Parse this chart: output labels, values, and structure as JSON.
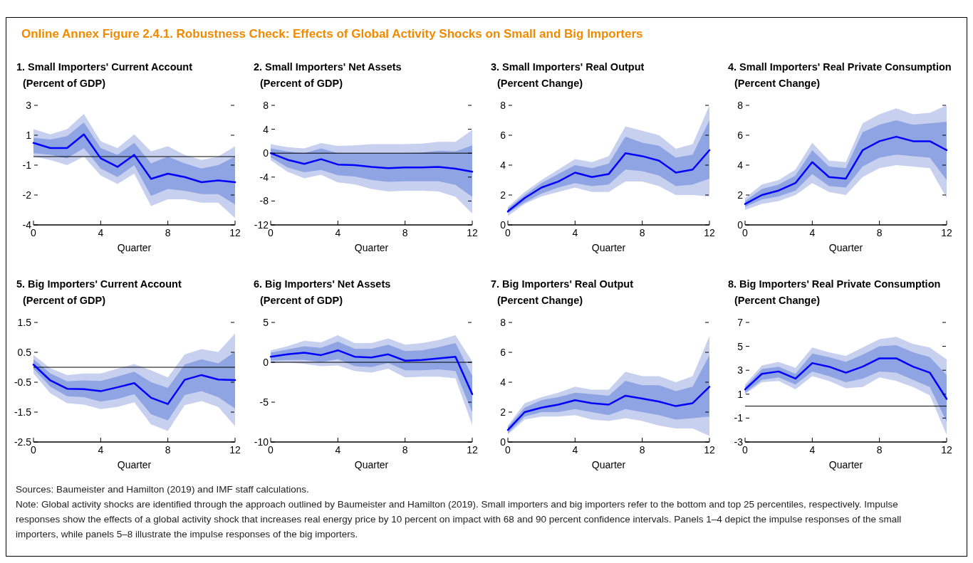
{
  "chart_data": [
    {
      "type": "other",
      "title": "Online Annex Figure 2.4.1. Robustness Check: Effects of Global Activity Shocks on Small and Big Importers",
      "color": "#f28a00",
      "annotations": [
        "Sources: Baumeister and Hamilton (2019) and IMF staff calculations.",
        "Note: Global activity shocks are identified through the approach outlined by Baumeister and Hamilton (2019). Small importers and big importers refer to the bottom and top 25 percentiles, respectively. Impulse responses show the effects of a global activity shock that increases real energy price by 10 percent on impact with 68 and 90 percent confidence intervals. Panels 1–4 depict the impulse responses of the small importers, while panels 5–8 illustrate the impulse responses of the big importers."
      ]
    },
    {
      "type": "line",
      "title": "1. Small Importers' Current Account",
      "subtitle": "(Percent of GDP)",
      "xlabel": "Quarter",
      "x": [
        0,
        1,
        2,
        3,
        4,
        5,
        6,
        7,
        8,
        9,
        10,
        11,
        12
      ],
      "xlim": [
        0,
        12
      ],
      "xticks": [
        0,
        4,
        8,
        12
      ],
      "ylim": [
        -4,
        3
      ],
      "yticks": [
        {
          "value": 3,
          "label": "3"
        },
        {
          "value": 1.25,
          "label": "1"
        },
        {
          "value": -0.5,
          "label": "-1"
        },
        {
          "value": -2.25,
          "label": "-2"
        },
        {
          "value": -4,
          "label": "-4"
        }
      ],
      "ref_lines": [
        {
          "axis": "y",
          "value": 0,
          "color": "#000000"
        }
      ],
      "series": [
        {
          "type": "line",
          "color": "#c8d0ef",
          "values": [
            null,
            null,
            null,
            null,
            null,
            null,
            null,
            null,
            null,
            null,
            null,
            null,
            null
          ],
          "lower": [
            0.0,
            -0.2,
            -0.5,
            0.0,
            -1.1,
            -1.6,
            -1.0,
            -2.9,
            -2.5,
            -2.5,
            -2.7,
            -2.7,
            -3.6
          ],
          "upper": [
            1.6,
            1.3,
            1.6,
            2.5,
            0.9,
            0.5,
            1.3,
            0.3,
            0.6,
            0.1,
            -0.2,
            0.0,
            0.6
          ]
        },
        {
          "type": "line",
          "color": "#8fa4e2",
          "values": [
            null,
            null,
            null,
            null,
            null,
            null,
            null,
            null,
            null,
            null,
            null,
            null,
            null
          ],
          "lower": [
            0.2,
            0.1,
            -0.1,
            0.5,
            -0.7,
            -1.2,
            -0.5,
            -2.3,
            -1.9,
            -2.0,
            -2.2,
            -2.2,
            -2.8
          ],
          "upper": [
            1.1,
            1.0,
            1.2,
            2.0,
            0.5,
            0.1,
            0.8,
            -0.4,
            0.0,
            -0.4,
            -0.7,
            -0.5,
            0.0
          ]
        },
        {
          "type": "line",
          "color": "#0000ff",
          "values": [
            0.8,
            0.5,
            0.5,
            1.3,
            -0.1,
            -0.6,
            0.1,
            -1.3,
            -1.0,
            -1.2,
            -1.5,
            -1.4,
            -1.5
          ]
        }
      ]
    },
    {
      "type": "line",
      "title": "2. Small Importers' Net Assets",
      "subtitle": "(Percent of GDP)",
      "xlabel": "Quarter",
      "x": [
        0,
        1,
        2,
        3,
        4,
        5,
        6,
        7,
        8,
        9,
        10,
        11,
        12
      ],
      "xlim": [
        0,
        12
      ],
      "xticks": [
        0,
        4,
        8,
        12
      ],
      "ylim": [
        -12,
        8
      ],
      "yticks": [
        8,
        4,
        0,
        -4,
        -8,
        -12
      ],
      "ref_lines": [
        {
          "axis": "y",
          "value": 0,
          "color": "#000000"
        }
      ],
      "series": [
        {
          "type": "line",
          "color": "#c8d0ef",
          "values": [
            null,
            null,
            null,
            null,
            null,
            null,
            null,
            null,
            null,
            null,
            null,
            null,
            null
          ],
          "lower": [
            -1.2,
            -3.1,
            -4.2,
            -3.6,
            -4.9,
            -5.2,
            -6.0,
            -6.4,
            -6.3,
            -6.3,
            -6.4,
            -7.3,
            -10.1
          ],
          "upper": [
            1.5,
            1.0,
            0.8,
            1.7,
            1.2,
            1.3,
            1.5,
            1.5,
            1.5,
            1.6,
            1.9,
            1.9,
            3.9
          ]
        },
        {
          "type": "line",
          "color": "#8fa4e2",
          "values": [
            null,
            null,
            null,
            null,
            null,
            null,
            null,
            null,
            null,
            null,
            null,
            null,
            null
          ],
          "lower": [
            -0.7,
            -2.4,
            -3.2,
            -2.8,
            -3.7,
            -3.9,
            -4.5,
            -4.8,
            -4.7,
            -4.7,
            -4.7,
            -5.3,
            -7.3
          ],
          "upper": [
            0.8,
            0.3,
            0.0,
            0.8,
            0.0,
            0.0,
            0.0,
            0.0,
            0.0,
            0.1,
            0.4,
            0.3,
            1.3
          ]
        },
        {
          "type": "line",
          "color": "#0000ff",
          "values": [
            0.0,
            -1.1,
            -1.8,
            -1.0,
            -1.9,
            -2.0,
            -2.3,
            -2.5,
            -2.4,
            -2.4,
            -2.3,
            -2.6,
            -3.1
          ]
        }
      ]
    },
    {
      "type": "line",
      "title": "3. Small Importers' Real Output",
      "subtitle": "(Percent Change)",
      "xlabel": "Quarter",
      "x": [
        0,
        1,
        2,
        3,
        4,
        5,
        6,
        7,
        8,
        9,
        10,
        11,
        12
      ],
      "xlim": [
        0,
        12
      ],
      "xticks": [
        0,
        4,
        8,
        12
      ],
      "ylim": [
        0,
        8
      ],
      "yticks": [
        0,
        2,
        4,
        6,
        8
      ],
      "series": [
        {
          "type": "line",
          "color": "#c8d0ef",
          "values": [
            null,
            null,
            null,
            null,
            null,
            null,
            null,
            null,
            null,
            null,
            null,
            null,
            null
          ],
          "lower": [
            0.6,
            1.4,
            1.9,
            2.2,
            2.5,
            2.2,
            2.2,
            2.9,
            2.9,
            2.6,
            2.0,
            2.0,
            1.9
          ],
          "upper": [
            1.2,
            2.2,
            3.0,
            3.7,
            4.4,
            4.2,
            4.6,
            6.6,
            6.3,
            6.0,
            5.1,
            5.4,
            8.0
          ]
        },
        {
          "type": "line",
          "color": "#8fa4e2",
          "values": [
            null,
            null,
            null,
            null,
            null,
            null,
            null,
            null,
            null,
            null,
            null,
            null,
            null
          ],
          "lower": [
            0.8,
            1.5,
            2.1,
            2.5,
            2.8,
            2.6,
            2.7,
            3.7,
            3.6,
            3.3,
            2.6,
            2.7,
            3.1
          ],
          "upper": [
            1.1,
            2.0,
            2.8,
            3.4,
            4.0,
            3.8,
            4.1,
            5.9,
            5.5,
            5.3,
            4.5,
            4.7,
            7.0
          ]
        },
        {
          "type": "line",
          "color": "#0000ff",
          "values": [
            0.9,
            1.8,
            2.5,
            2.9,
            3.5,
            3.2,
            3.4,
            4.8,
            4.6,
            4.3,
            3.5,
            3.7,
            5.0
          ]
        }
      ]
    },
    {
      "type": "line",
      "title": "4. Small Importers' Real Private Consumption",
      "subtitle": "(Percent Change)",
      "xlabel": "Quarter",
      "x": [
        0,
        1,
        2,
        3,
        4,
        5,
        6,
        7,
        8,
        9,
        10,
        11,
        12
      ],
      "xlim": [
        0,
        12
      ],
      "xticks": [
        0,
        4,
        8,
        12
      ],
      "ylim": [
        0,
        8
      ],
      "yticks": [
        0,
        2,
        4,
        6,
        8
      ],
      "series": [
        {
          "type": "line",
          "color": "#c8d0ef",
          "values": [
            null,
            null,
            null,
            null,
            null,
            null,
            null,
            null,
            null,
            null,
            null,
            null,
            null
          ],
          "lower": [
            1.0,
            1.4,
            1.6,
            2.0,
            2.8,
            2.2,
            2.0,
            3.2,
            3.8,
            4.0,
            3.9,
            3.8,
            1.8
          ],
          "upper": [
            1.8,
            2.7,
            3.0,
            3.7,
            5.5,
            4.3,
            4.2,
            6.8,
            7.4,
            7.8,
            7.4,
            7.5,
            8.0
          ]
        },
        {
          "type": "line",
          "color": "#8fa4e2",
          "values": [
            null,
            null,
            null,
            null,
            null,
            null,
            null,
            null,
            null,
            null,
            null,
            null,
            null
          ],
          "lower": [
            1.2,
            1.7,
            1.9,
            2.3,
            3.4,
            2.6,
            2.5,
            3.9,
            4.5,
            4.7,
            4.6,
            4.5,
            3.0
          ],
          "upper": [
            1.6,
            2.4,
            2.7,
            3.3,
            5.0,
            3.9,
            3.8,
            6.2,
            6.7,
            7.0,
            6.7,
            6.8,
            6.9
          ]
        },
        {
          "type": "line",
          "color": "#0000ff",
          "values": [
            1.4,
            2.0,
            2.3,
            2.8,
            4.2,
            3.2,
            3.1,
            5.0,
            5.6,
            5.9,
            5.6,
            5.6,
            5.0
          ]
        }
      ]
    },
    {
      "type": "line",
      "title": "5. Big Importers' Current Account",
      "subtitle": "(Percent of GDP)",
      "xlabel": "Quarter",
      "x": [
        0,
        1,
        2,
        3,
        4,
        5,
        6,
        7,
        8,
        9,
        10,
        11,
        12
      ],
      "xlim": [
        0,
        12
      ],
      "xticks": [
        0,
        4,
        8,
        12
      ],
      "ylim": [
        -2.5,
        1.5
      ],
      "yticks": [
        1.5,
        0.5,
        -0.5,
        -1.5,
        -2.5
      ],
      "ref_lines": [
        {
          "axis": "y",
          "value": 0,
          "color": "#000000"
        }
      ],
      "series": [
        {
          "type": "line",
          "color": "#c8d0ef",
          "values": [
            null,
            null,
            null,
            null,
            null,
            null,
            null,
            null,
            null,
            null,
            null,
            null,
            null
          ],
          "lower": [
            -0.21,
            -0.87,
            -1.2,
            -1.25,
            -1.4,
            -1.33,
            -1.17,
            -1.91,
            -2.13,
            -1.27,
            -1.13,
            -1.33,
            -1.97
          ],
          "upper": [
            0.41,
            -0.03,
            -0.26,
            -0.21,
            -0.21,
            -0.05,
            0.11,
            -0.1,
            -0.34,
            0.43,
            0.61,
            0.51,
            1.13
          ]
        },
        {
          "type": "line",
          "color": "#8fa4e2",
          "values": [
            null,
            null,
            null,
            null,
            null,
            null,
            null,
            null,
            null,
            null,
            null,
            null,
            null
          ],
          "lower": [
            -0.05,
            -0.65,
            -0.97,
            -1.0,
            -1.15,
            -1.06,
            -0.9,
            -1.57,
            -1.78,
            -0.93,
            -0.8,
            -1.0,
            -1.38
          ],
          "upper": [
            0.27,
            -0.2,
            -0.47,
            -0.44,
            -0.46,
            -0.31,
            -0.15,
            -0.5,
            -0.69,
            0.09,
            0.27,
            0.13,
            0.52
          ]
        },
        {
          "type": "line",
          "color": "#0000ff",
          "values": [
            0.09,
            -0.44,
            -0.72,
            -0.73,
            -0.8,
            -0.67,
            -0.53,
            -1.02,
            -1.23,
            -0.42,
            -0.26,
            -0.41,
            -0.43
          ]
        }
      ]
    },
    {
      "type": "line",
      "title": "6. Big Importers' Net Assets",
      "subtitle": "(Percent of GDP)",
      "xlabel": "Quarter",
      "x": [
        0,
        1,
        2,
        3,
        4,
        5,
        6,
        7,
        8,
        9,
        10,
        11,
        12
      ],
      "xlim": [
        0,
        12
      ],
      "xticks": [
        0,
        4,
        8,
        12
      ],
      "ylim": [
        -10,
        5
      ],
      "yticks": [
        5,
        0,
        -5,
        -10
      ],
      "ref_lines": [
        {
          "axis": "y",
          "value": 0,
          "color": "#000000"
        }
      ],
      "series": [
        {
          "type": "line",
          "color": "#c8d0ef",
          "values": [
            null,
            null,
            null,
            null,
            null,
            null,
            null,
            null,
            null,
            null,
            null,
            null,
            null
          ],
          "lower": [
            -0.1,
            0.0,
            -0.2,
            -0.5,
            -0.4,
            -1.1,
            -1.3,
            -0.8,
            -1.9,
            -1.8,
            -1.8,
            -2.0,
            -7.9
          ],
          "upper": [
            1.5,
            2.0,
            2.7,
            2.5,
            3.4,
            2.4,
            2.4,
            3.0,
            2.2,
            2.4,
            2.8,
            3.4,
            0.1
          ]
        },
        {
          "type": "line",
          "color": "#8fa4e2",
          "values": [
            null,
            null,
            null,
            null,
            null,
            null,
            null,
            null,
            null,
            null,
            null,
            null,
            null
          ],
          "lower": [
            0.2,
            0.3,
            0.3,
            0.0,
            0.4,
            -0.5,
            -0.6,
            -0.1,
            -1.0,
            -1.0,
            -0.9,
            -1.1,
            -6.3
          ],
          "upper": [
            1.2,
            1.6,
            2.0,
            1.8,
            2.6,
            1.7,
            1.7,
            2.2,
            1.4,
            1.5,
            1.9,
            2.4,
            -1.7
          ]
        },
        {
          "type": "line",
          "color": "#0000ff",
          "values": [
            0.7,
            1.0,
            1.2,
            0.9,
            1.5,
            0.7,
            0.6,
            1.0,
            0.2,
            0.3,
            0.5,
            0.7,
            -4.0
          ]
        }
      ]
    },
    {
      "type": "line",
      "title": "7. Big Importers' Real Output",
      "subtitle": "(Percent Change)",
      "xlabel": "Quarter",
      "x": [
        0,
        1,
        2,
        3,
        4,
        5,
        6,
        7,
        8,
        9,
        10,
        11,
        12
      ],
      "xlim": [
        0,
        12
      ],
      "xticks": [
        0,
        4,
        8,
        12
      ],
      "ylim": [
        0,
        8
      ],
      "yticks": [
        0,
        2,
        4,
        6,
        8
      ],
      "series": [
        {
          "type": "line",
          "color": "#c8d0ef",
          "values": [
            null,
            null,
            null,
            null,
            null,
            null,
            null,
            null,
            null,
            null,
            null,
            null,
            null
          ],
          "lower": [
            0.5,
            1.5,
            1.7,
            1.7,
            1.8,
            1.5,
            1.4,
            1.6,
            1.4,
            1.1,
            0.9,
            0.9,
            0.4
          ],
          "upper": [
            1.1,
            2.6,
            3.0,
            3.3,
            3.7,
            3.5,
            3.5,
            4.7,
            4.4,
            4.4,
            4.0,
            4.4,
            7.1
          ]
        },
        {
          "type": "line",
          "color": "#8fa4e2",
          "values": [
            null,
            null,
            null,
            null,
            null,
            null,
            null,
            null,
            null,
            null,
            null,
            null,
            null
          ],
          "lower": [
            0.6,
            1.7,
            2.0,
            2.0,
            2.2,
            2.0,
            1.8,
            2.2,
            2.0,
            1.8,
            1.5,
            1.6,
            1.7
          ],
          "upper": [
            1.0,
            2.3,
            2.8,
            3.0,
            3.3,
            3.2,
            3.1,
            4.1,
            3.8,
            3.8,
            3.4,
            3.7,
            5.8
          ]
        },
        {
          "type": "line",
          "color": "#0000ff",
          "values": [
            0.8,
            2.0,
            2.3,
            2.5,
            2.8,
            2.6,
            2.5,
            3.1,
            2.9,
            2.7,
            2.4,
            2.6,
            3.7
          ]
        }
      ]
    },
    {
      "type": "line",
      "title": "8. Big Importers' Real Private Consumption",
      "subtitle": "(Percent Change)",
      "xlabel": "Quarter",
      "x": [
        0,
        1,
        2,
        3,
        4,
        5,
        6,
        7,
        8,
        9,
        10,
        11,
        12
      ],
      "xlim": [
        0,
        12
      ],
      "xticks": [
        0,
        4,
        8,
        12
      ],
      "ylim": [
        -3,
        7
      ],
      "yticks": [
        7,
        5,
        3,
        1,
        -1,
        -3
      ],
      "ref_lines": [
        {
          "axis": "y",
          "value": 0,
          "color": "#000000"
        }
      ],
      "series": [
        {
          "type": "line",
          "color": "#c8d0ef",
          "values": [
            null,
            null,
            null,
            null,
            null,
            null,
            null,
            null,
            null,
            null,
            null,
            null,
            null
          ],
          "lower": [
            1.0,
            2.0,
            2.1,
            1.4,
            2.5,
            2.1,
            1.5,
            1.6,
            2.4,
            2.1,
            1.6,
            0.9,
            -2.4
          ],
          "upper": [
            1.8,
            3.4,
            3.7,
            3.2,
            4.9,
            4.5,
            4.2,
            4.9,
            5.6,
            5.8,
            5.2,
            4.9,
            3.9
          ]
        },
        {
          "type": "line",
          "color": "#8fa4e2",
          "values": [
            null,
            null,
            null,
            null,
            null,
            null,
            null,
            null,
            null,
            null,
            null,
            null,
            null
          ],
          "lower": [
            1.1,
            2.2,
            2.4,
            1.8,
            2.9,
            2.5,
            2.0,
            2.3,
            2.9,
            2.8,
            2.2,
            1.6,
            -1.3
          ],
          "upper": [
            1.6,
            3.1,
            3.3,
            2.7,
            4.4,
            4.1,
            3.7,
            4.3,
            5.0,
            5.1,
            4.5,
            4.1,
            2.6
          ]
        },
        {
          "type": "line",
          "color": "#0000ff",
          "values": [
            1.4,
            2.7,
            2.9,
            2.3,
            3.6,
            3.3,
            2.8,
            3.3,
            4.0,
            4.0,
            3.3,
            2.8,
            0.6
          ]
        }
      ]
    }
  ]
}
